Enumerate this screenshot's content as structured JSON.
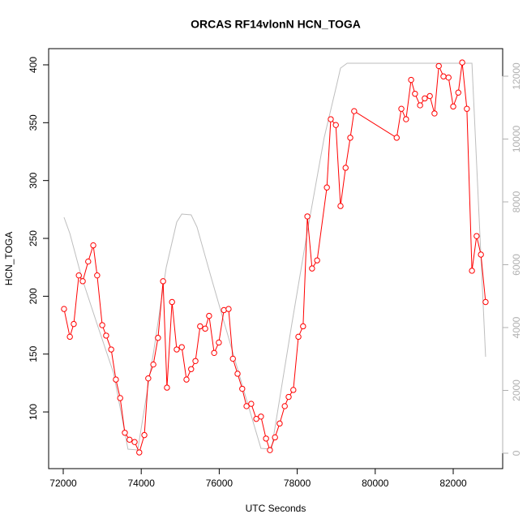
{
  "chart_data": {
    "type": "line",
    "title": "ORCAS RF14vlonN HCN_TOGA",
    "xlabel": "UTC Seconds",
    "ylabel": "HCN_TOGA",
    "xlim": [
      71626,
      83268
    ],
    "ylim": [
      51,
      414
    ],
    "y2lim": [
      -490,
      12877
    ],
    "xticks": [
      72000,
      74000,
      76000,
      78000,
      80000,
      82000
    ],
    "yticks": [
      100,
      150,
      200,
      250,
      300,
      350,
      400
    ],
    "y2ticks": [
      0,
      2000,
      4000,
      6000,
      8000,
      10000,
      12000
    ],
    "series": [
      {
        "color": "#ff0000",
        "markers": true,
        "x": [
          72020,
          72170,
          72270,
          72400,
          72500,
          72640,
          72770,
          72870,
          73000,
          73100,
          73230,
          73350,
          73460,
          73580,
          73700,
          73830,
          73950,
          74080,
          74180,
          74310,
          74430,
          74560,
          74660,
          74790,
          74910,
          75040,
          75160,
          75280,
          75390,
          75510,
          75640,
          75740,
          75870,
          75990,
          76120,
          76240,
          76350,
          76470,
          76590,
          76700,
          76820,
          76950,
          77070,
          77200,
          77300,
          77430,
          77550,
          77680,
          77780,
          77900,
          78030,
          78150,
          78260,
          78380,
          78510,
          78760,
          78860,
          78990,
          79110,
          79240,
          79360,
          79460,
          80550,
          80670,
          80790,
          80920,
          81020,
          81150,
          81270,
          81400,
          81520,
          81630,
          81750,
          81880,
          82000,
          82130,
          82230,
          82350,
          82480,
          82600,
          82710,
          82830
        ],
        "values": [
          189,
          165,
          176,
          218,
          213,
          230,
          244,
          218,
          175,
          166,
          154,
          128,
          112,
          82,
          76,
          74,
          65,
          80,
          129,
          141,
          164,
          213,
          121,
          195,
          154,
          156,
          128,
          137,
          144,
          174,
          172,
          183,
          151,
          160,
          188,
          189,
          146,
          133,
          120,
          105,
          107,
          94,
          96,
          77,
          67,
          78,
          90,
          105,
          113,
          119,
          165,
          174,
          269,
          224,
          231,
          294,
          353,
          348,
          278,
          311,
          337,
          360,
          337,
          362,
          353,
          387,
          375,
          365,
          371,
          373,
          358,
          399,
          390,
          389,
          364,
          376,
          402,
          362,
          222,
          252,
          236,
          195
        ]
      },
      {
        "color": "#bebebe",
        "axis": "y2",
        "markers": false,
        "x": [
          72020,
          72170,
          72460,
          72870,
          73290,
          73660,
          73910,
          74330,
          74640,
          74910,
          75040,
          75280,
          75430,
          75780,
          76200,
          76620,
          77070,
          77340,
          77860,
          78280,
          78690,
          79010,
          79110,
          79280,
          82020,
          82480,
          82830
        ],
        "values": [
          7510,
          6994,
          5652,
          4103,
          2555,
          129,
          103,
          3329,
          5910,
          7355,
          7613,
          7587,
          7200,
          5652,
          3845,
          2039,
          155,
          129,
          4103,
          7200,
          10039,
          11716,
          12258,
          12413,
          12413,
          12413,
          3071
        ]
      }
    ]
  }
}
